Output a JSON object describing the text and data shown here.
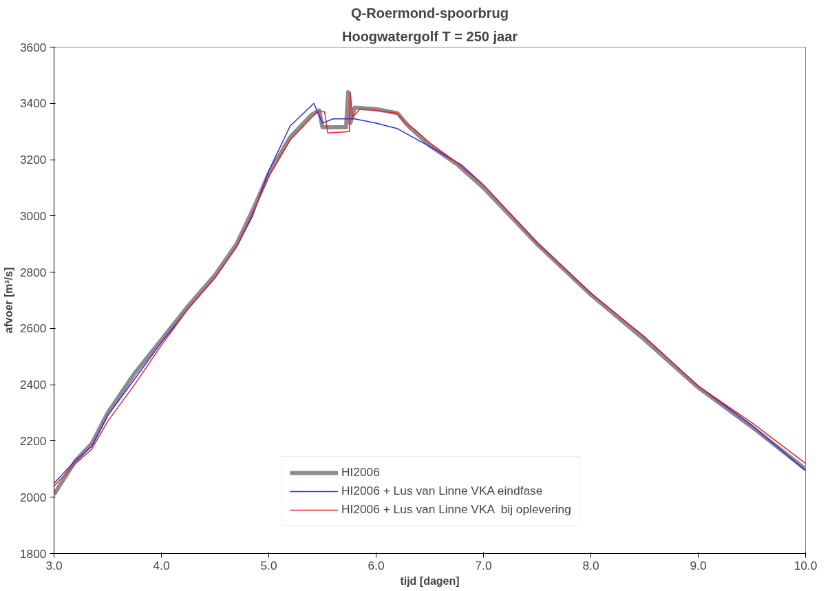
{
  "chart_data": {
    "type": "line",
    "title": "Q-Roermond-spoorbrug",
    "subtitle": "Hoogwatergolf T = 250 jaar",
    "xlabel": "tijd [dagen]",
    "ylabel": "afvoer [m³/s]",
    "xlim": [
      3.0,
      10.0
    ],
    "xticks": [
      {
        "value": 3,
        "label": "3.0"
      },
      {
        "value": 4,
        "label": "4.0"
      },
      {
        "value": 5,
        "label": "5.0"
      },
      {
        "value": 6,
        "label": "6.0"
      },
      {
        "value": 7,
        "label": "7.0"
      },
      {
        "value": 8,
        "label": "8.0"
      },
      {
        "value": 9,
        "label": "9.0"
      },
      {
        "value": 10,
        "label": "10.0"
      }
    ],
    "ylim": [
      1800,
      3600
    ],
    "yticks": [
      1800,
      2000,
      2200,
      2400,
      2600,
      2800,
      3000,
      3200,
      3400,
      3600
    ],
    "grid": false,
    "legend": "bottom",
    "marker": "none",
    "line_style": "solid",
    "series": [
      {
        "name": "HI2006",
        "color": "#8c8c8c",
        "x": [
          3.0,
          3.2,
          3.35,
          3.5,
          3.75,
          4.0,
          4.25,
          4.5,
          4.7,
          4.85,
          5.0,
          5.2,
          5.4,
          5.47,
          5.5,
          5.72,
          5.74,
          5.76,
          5.8,
          6.0,
          6.2,
          6.3,
          6.5,
          6.75,
          7.0,
          7.5,
          8.0,
          8.5,
          9.0,
          9.5,
          10.0
        ],
        "values": [
          2010,
          2130,
          2190,
          2300,
          2440,
          2560,
          2680,
          2790,
          2900,
          3020,
          3150,
          3280,
          3360,
          3375,
          3315,
          3315,
          3440,
          3330,
          3385,
          3380,
          3365,
          3320,
          3250,
          3185,
          3100,
          2900,
          2720,
          2560,
          2390,
          2250,
          2100
        ]
      },
      {
        "name": "HI2006 + Lus van Linne VKA eindfase",
        "color": "#2b2bdc",
        "x": [
          3.0,
          3.2,
          3.35,
          3.5,
          3.75,
          4.0,
          4.25,
          4.5,
          4.7,
          4.85,
          5.0,
          5.2,
          5.42,
          5.5,
          5.6,
          5.8,
          6.0,
          6.2,
          6.53,
          6.8,
          7.0,
          7.5,
          8.0,
          8.5,
          9.0,
          9.5,
          10.0
        ],
        "values": [
          2050,
          2130,
          2180,
          2290,
          2420,
          2550,
          2670,
          2780,
          2890,
          3000,
          3160,
          3320,
          3400,
          3330,
          3345,
          3345,
          3330,
          3310,
          3240,
          3180,
          3110,
          2905,
          2725,
          2570,
          2395,
          2255,
          2095
        ]
      },
      {
        "name": "HI2006 + Lus van Linne VKA  bij oplevering",
        "color": "#f21b2b",
        "x": [
          3.0,
          3.2,
          3.35,
          3.5,
          3.75,
          4.0,
          4.25,
          4.5,
          4.7,
          4.85,
          5.0,
          5.2,
          5.45,
          5.52,
          5.55,
          5.75,
          5.76,
          5.78,
          5.85,
          6.0,
          6.2,
          6.27,
          6.35,
          6.5,
          6.75,
          7.0,
          7.5,
          8.0,
          8.5,
          9.0,
          9.5,
          10.0
        ],
        "values": [
          2040,
          2120,
          2170,
          2270,
          2400,
          2540,
          2670,
          2780,
          2890,
          3010,
          3140,
          3270,
          3370,
          3370,
          3295,
          3300,
          3440,
          3350,
          3380,
          3375,
          3365,
          3330,
          3310,
          3260,
          3190,
          3110,
          2905,
          2725,
          2570,
          2395,
          2265,
          2120
        ]
      }
    ]
  }
}
